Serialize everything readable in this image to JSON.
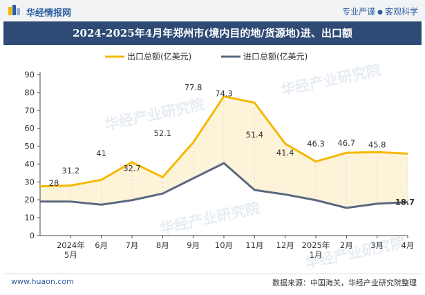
{
  "header": {
    "brand": "华经情报网",
    "tagline": [
      "专业严谨",
      "客观科学"
    ]
  },
  "title": "2024-2025年4月年郑州市(境内目的地/货源地)进、出口额",
  "watermark": [
    "华经产业研究院",
    "www.huaon.com"
  ],
  "footer": {
    "url": "www.huaon.com",
    "source": "数据来源：中国海关，华经产业研究院整理"
  },
  "colors": {
    "exports": "#f5b800",
    "imports": "#5a6880",
    "band_fill": "#fdf3d9",
    "title_band": "#2e4a75",
    "axis": "#444444"
  },
  "chart_data": {
    "type": "line",
    "categories": [
      "2024年\n5月",
      "6月",
      "7月",
      "8月",
      "9月",
      "10月",
      "11月",
      "12月",
      "2025年\n1月",
      "2月",
      "3月",
      "4月"
    ],
    "point_dates": [
      "2024-04",
      "2024-05",
      "2024-06",
      "2024-07",
      "2024-08",
      "2024-09",
      "2024-10",
      "2024-11",
      "2024-12",
      "2025-01",
      "2025-02",
      "2025-03",
      "2025-04"
    ],
    "series": [
      {
        "name": "出口总额(亿美元)",
        "values": [
          28,
          31.2,
          41,
          32.7,
          52.1,
          77.8,
          74.3,
          51.4,
          41.4,
          46.3,
          46.7,
          45.8
        ],
        "labels_shown": [
          true,
          true,
          true,
          true,
          true,
          true,
          true,
          true,
          true,
          true,
          true,
          true
        ],
        "first_point_value": 27.5
      },
      {
        "name": "进口总额(亿美元)",
        "values": [
          19,
          17.3,
          19.8,
          23.5,
          32,
          40.5,
          25.5,
          23,
          19.8,
          15.5,
          17.8,
          18.7
        ],
        "labels_shown": [
          false,
          false,
          false,
          false,
          false,
          false,
          false,
          false,
          false,
          false,
          false,
          true
        ],
        "first_point_value": 19
      }
    ],
    "ylim": [
      0,
      90
    ],
    "yticks": [
      0,
      10,
      20,
      30,
      40,
      50,
      60,
      70,
      80,
      90
    ],
    "legend": "top-center",
    "grid": false,
    "fill_between": true
  }
}
